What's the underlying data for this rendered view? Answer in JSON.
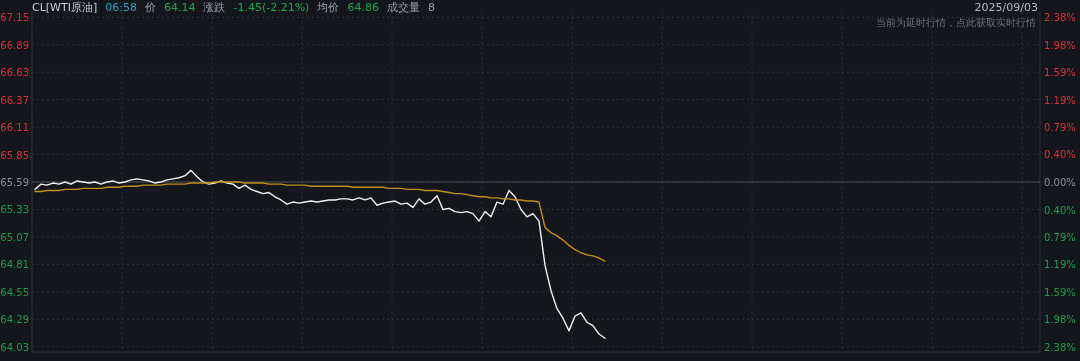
{
  "chart_data": {
    "type": "line",
    "title": "CL[WTI原油]",
    "annotations": [
      "06:58",
      "价",
      "64.14",
      "涨跌",
      "-1.45(-2.21%)",
      "均价",
      "64.86",
      "成交量",
      "8",
      "2025/09/03",
      "当前为延时行情，点此获取实时行情"
    ],
    "categories": [
      null,
      null,
      null,
      null,
      null,
      null,
      null,
      null,
      null,
      null,
      null,
      null,
      null,
      null,
      null,
      null,
      null,
      null,
      null,
      null,
      null,
      null,
      null,
      null,
      null,
      null,
      null,
      null,
      null,
      null,
      null,
      null,
      null,
      null,
      null,
      null,
      null,
      null,
      null,
      null,
      null,
      null,
      null,
      null,
      null,
      null,
      null,
      null,
      null,
      null,
      null,
      null,
      null,
      null,
      null,
      null,
      null,
      null,
      null,
      null,
      null,
      null,
      null,
      null,
      null,
      null,
      null,
      null,
      null,
      null,
      null,
      null,
      null,
      null,
      null,
      null,
      null,
      null,
      null,
      null,
      null,
      null,
      null,
      null,
      null,
      null,
      null,
      null,
      null,
      null,
      null,
      null,
      null,
      null,
      null,
      null,
      null,
      null,
      null,
      null,
      null,
      null,
      null,
      null,
      null,
      null,
      null,
      null,
      null,
      null,
      null,
      null,
      null,
      null,
      null,
      null,
      null,
      null,
      null,
      null,
      null,
      null,
      null,
      null,
      null,
      null,
      null,
      null,
      null,
      null,
      null,
      null,
      null,
      null,
      null,
      null,
      null,
      null,
      null,
      null,
      null,
      null,
      null,
      null,
      null,
      null,
      null,
      null,
      null,
      null,
      null,
      null,
      null,
      null,
      null,
      null,
      null,
      null,
      null,
      null,
      null,
      null,
      null,
      null,
      null,
      null,
      null,
      null
    ],
    "series": [
      {
        "color": "#f2f2f2",
        "values": [
          65.52,
          65.57,
          65.56,
          65.58,
          65.57,
          65.59,
          65.57,
          65.6,
          65.59,
          65.58,
          65.59,
          65.57,
          65.59,
          65.6,
          65.58,
          65.59,
          65.61,
          65.62,
          65.61,
          65.6,
          65.58,
          65.59,
          65.61,
          65.62,
          65.63,
          65.65,
          65.7,
          65.64,
          65.59,
          65.57,
          65.58,
          65.6,
          65.58,
          65.57,
          65.53,
          65.56,
          65.52,
          65.5,
          65.48,
          65.49,
          65.45,
          65.42,
          65.38,
          65.4,
          65.39,
          65.4,
          65.41,
          65.4,
          65.41,
          65.42,
          65.42,
          65.43,
          65.43,
          65.42,
          65.44,
          65.42,
          65.44,
          65.37,
          65.39,
          65.4,
          65.41,
          65.38,
          65.39,
          65.35,
          65.43,
          65.38,
          65.4,
          65.46,
          65.33,
          65.34,
          65.31,
          65.3,
          65.31,
          65.29,
          65.22,
          65.31,
          65.26,
          65.4,
          65.38,
          65.51,
          65.45,
          65.33,
          65.26,
          65.29,
          65.22,
          64.8,
          64.56,
          64.39,
          64.3,
          64.18,
          64.32,
          64.35,
          64.26,
          64.23,
          64.15,
          64.11,
          null,
          null,
          null,
          null,
          null,
          null,
          null,
          null,
          null,
          null,
          null,
          null,
          null,
          null,
          null,
          null,
          null,
          null,
          null,
          null,
          null,
          null,
          null,
          null,
          null,
          null,
          null,
          null,
          null,
          null,
          null,
          null,
          null,
          null,
          null,
          null,
          null,
          null,
          null,
          null,
          null,
          null,
          null,
          null,
          null,
          null,
          null,
          null,
          null,
          null,
          null,
          null,
          null,
          null,
          null,
          null,
          null,
          null,
          null,
          null,
          null,
          null,
          null,
          null,
          null,
          null,
          null,
          null,
          null,
          null,
          null,
          null
        ]
      },
      {
        "color": "#c18f16",
        "values": [
          65.5,
          65.5,
          65.51,
          65.51,
          65.51,
          65.52,
          65.52,
          65.52,
          65.53,
          65.53,
          65.53,
          65.53,
          65.54,
          65.54,
          65.54,
          65.55,
          65.55,
          65.55,
          65.56,
          65.56,
          65.56,
          65.56,
          65.57,
          65.57,
          65.57,
          65.57,
          65.58,
          65.58,
          65.58,
          65.58,
          65.59,
          65.59,
          65.59,
          65.59,
          65.59,
          65.58,
          65.58,
          65.58,
          65.58,
          65.57,
          65.57,
          65.57,
          65.56,
          65.56,
          65.56,
          65.56,
          65.55,
          65.55,
          65.55,
          65.55,
          65.55,
          65.55,
          65.55,
          65.54,
          65.54,
          65.54,
          65.54,
          65.54,
          65.54,
          65.53,
          65.53,
          65.53,
          65.52,
          65.52,
          65.52,
          65.51,
          65.51,
          65.51,
          65.5,
          65.49,
          65.48,
          65.48,
          65.47,
          65.46,
          65.45,
          65.45,
          65.44,
          65.44,
          65.43,
          65.43,
          65.42,
          65.42,
          65.41,
          65.41,
          65.4,
          65.16,
          65.11,
          65.08,
          65.04,
          64.99,
          64.95,
          64.92,
          64.9,
          64.89,
          64.87,
          64.84,
          null,
          null,
          null,
          null,
          null,
          null,
          null,
          null,
          null,
          null,
          null,
          null,
          null,
          null,
          null,
          null,
          null,
          null,
          null,
          null,
          null,
          null,
          null,
          null,
          null,
          null,
          null,
          null,
          null,
          null,
          null,
          null,
          null,
          null,
          null,
          null,
          null,
          null,
          null,
          null,
          null,
          null,
          null,
          null,
          null,
          null,
          null,
          null,
          null,
          null,
          null,
          null,
          null,
          null,
          null,
          null,
          null,
          null,
          null,
          null,
          null,
          null,
          null,
          null,
          null,
          null,
          null,
          null,
          null,
          null,
          null,
          null
        ]
      }
    ],
    "ylim": [
      63.98,
      67.2
    ],
    "yticks": [
      64.03,
      64.29,
      64.55,
      64.81,
      65.07,
      65.33,
      65.59,
      65.85,
      66.11,
      66.37,
      66.63,
      66.89,
      67.15
    ],
    "y2lim": [
      -2.455,
      2.455
    ],
    "y2ticks": [
      {
        "value": -2.38,
        "label": "2.38%"
      },
      {
        "value": -1.98,
        "label": "1.98%"
      },
      {
        "value": -1.59,
        "label": "1.59%"
      },
      {
        "value": -1.19,
        "label": "1.19%"
      },
      {
        "value": -0.79,
        "label": "0.79%"
      },
      {
        "value": -0.4,
        "label": "0.40%"
      },
      {
        "value": 0,
        "label": "0.00%"
      },
      {
        "value": 0.4,
        "label": "0.40%"
      },
      {
        "value": 0.79,
        "label": "0.79%"
      },
      {
        "value": 1.19,
        "label": "1.19%"
      },
      {
        "value": 1.59,
        "label": "1.59%"
      },
      {
        "value": 1.98,
        "label": "1.98%"
      },
      {
        "value": 2.38,
        "label": "2.38%"
      }
    ],
    "ref_lines": [
      {
        "axis": "y",
        "value": 65.59,
        "color": "#4a4e57"
      }
    ],
    "grid": true,
    "tick_labels": "y",
    "line_style": "solid",
    "marker": "none"
  }
}
